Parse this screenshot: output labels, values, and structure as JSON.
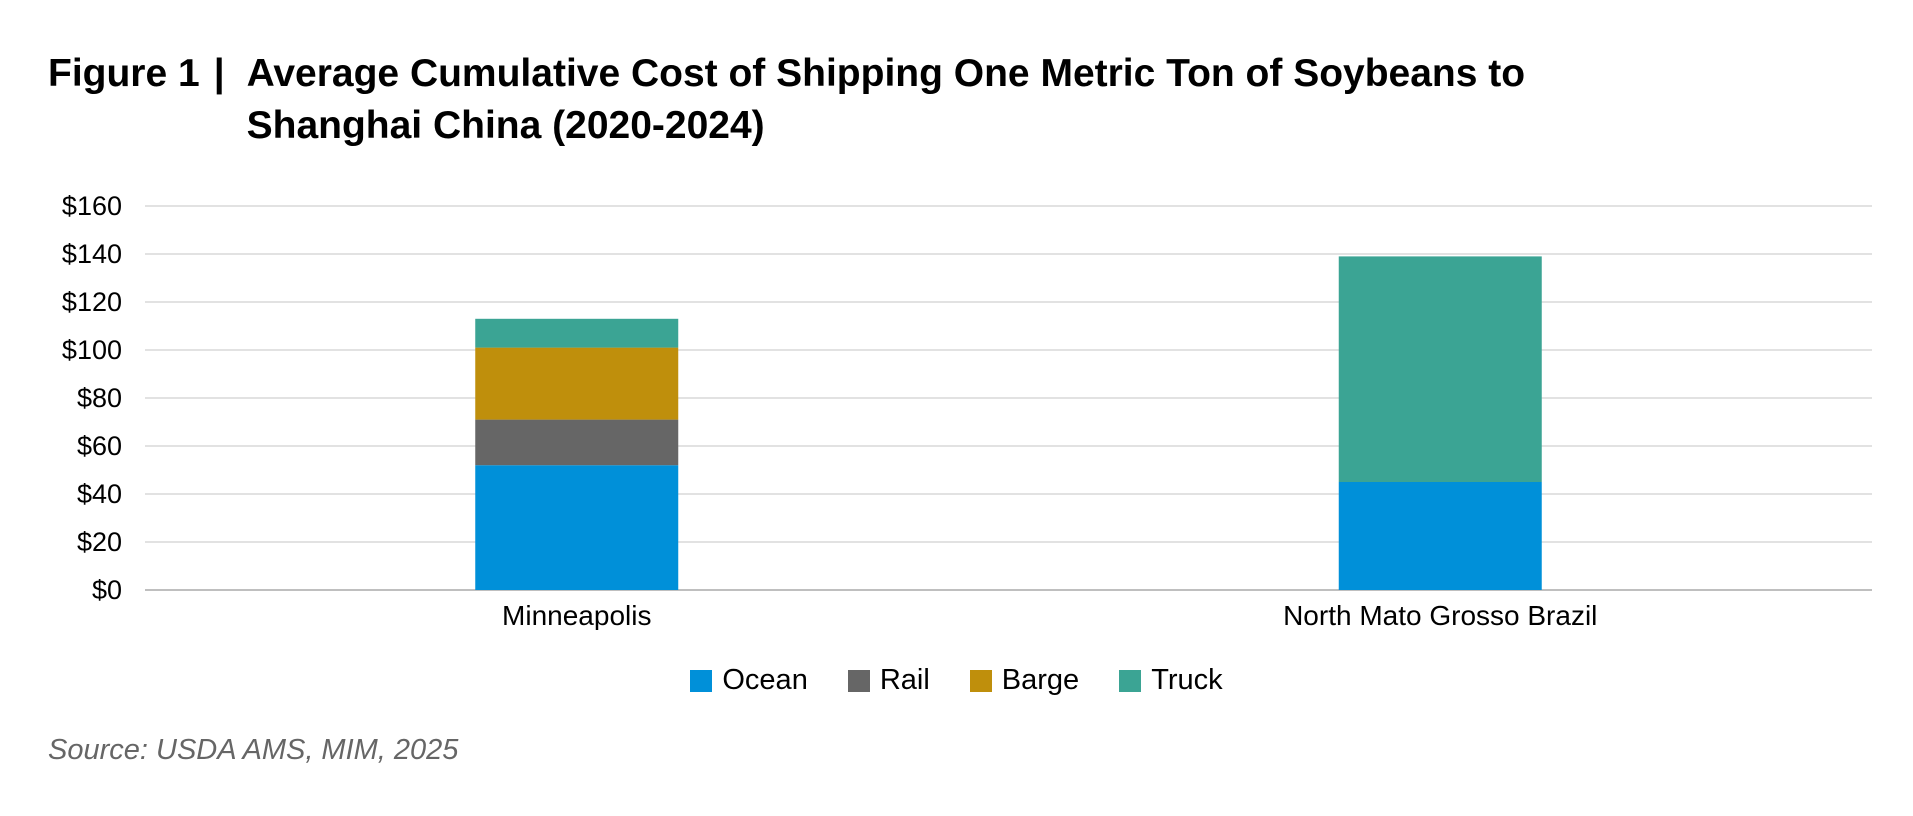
{
  "header": {
    "figure_label": "Figure 1",
    "separator": "|",
    "title": "Average Cumulative Cost of Shipping One Metric Ton of Soybeans to Shanghai China (2020-2024)"
  },
  "chart_data": {
    "type": "bar",
    "stacked": true,
    "categories": [
      "Minneapolis",
      "North Mato Grosso Brazil"
    ],
    "series": [
      {
        "name": "Ocean",
        "color": "#0090D9",
        "values": [
          52,
          45
        ]
      },
      {
        "name": "Rail",
        "color": "#666666",
        "values": [
          19,
          0
        ]
      },
      {
        "name": "Barge",
        "color": "#BF8F0C",
        "values": [
          30,
          0
        ]
      },
      {
        "name": "Truck",
        "color": "#3BA494",
        "values": [
          12,
          94
        ]
      }
    ],
    "ylim": [
      0,
      160
    ],
    "yticks": [
      0,
      20,
      40,
      60,
      80,
      100,
      120,
      140,
      160
    ],
    "ytick_labels": [
      "$0",
      "$20",
      "$40",
      "$60",
      "$80",
      "$100",
      "$120",
      "$140",
      "$160"
    ],
    "grid": true,
    "legend_position": "bottom-center"
  },
  "footer": {
    "source": "Source: USDA AMS, MIM, 2025"
  }
}
